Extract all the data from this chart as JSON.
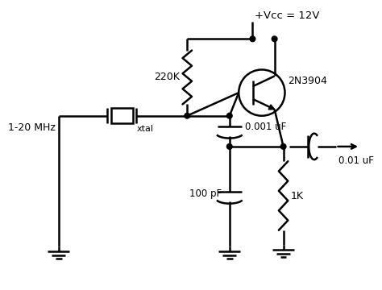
{
  "bg_color": "#ffffff",
  "line_color": "#000000",
  "text_color": "#000000",
  "vcc_label": "+Vcc = 12V",
  "transistor_label": "2N3904",
  "r1_label": "220K",
  "c1_label": "0.001 uF",
  "c2_label": "100 pF",
  "c3_label": "0.01 uF",
  "r2_label": "1K",
  "xtal_label": "xtal",
  "freq_label": "1-20 MHz"
}
